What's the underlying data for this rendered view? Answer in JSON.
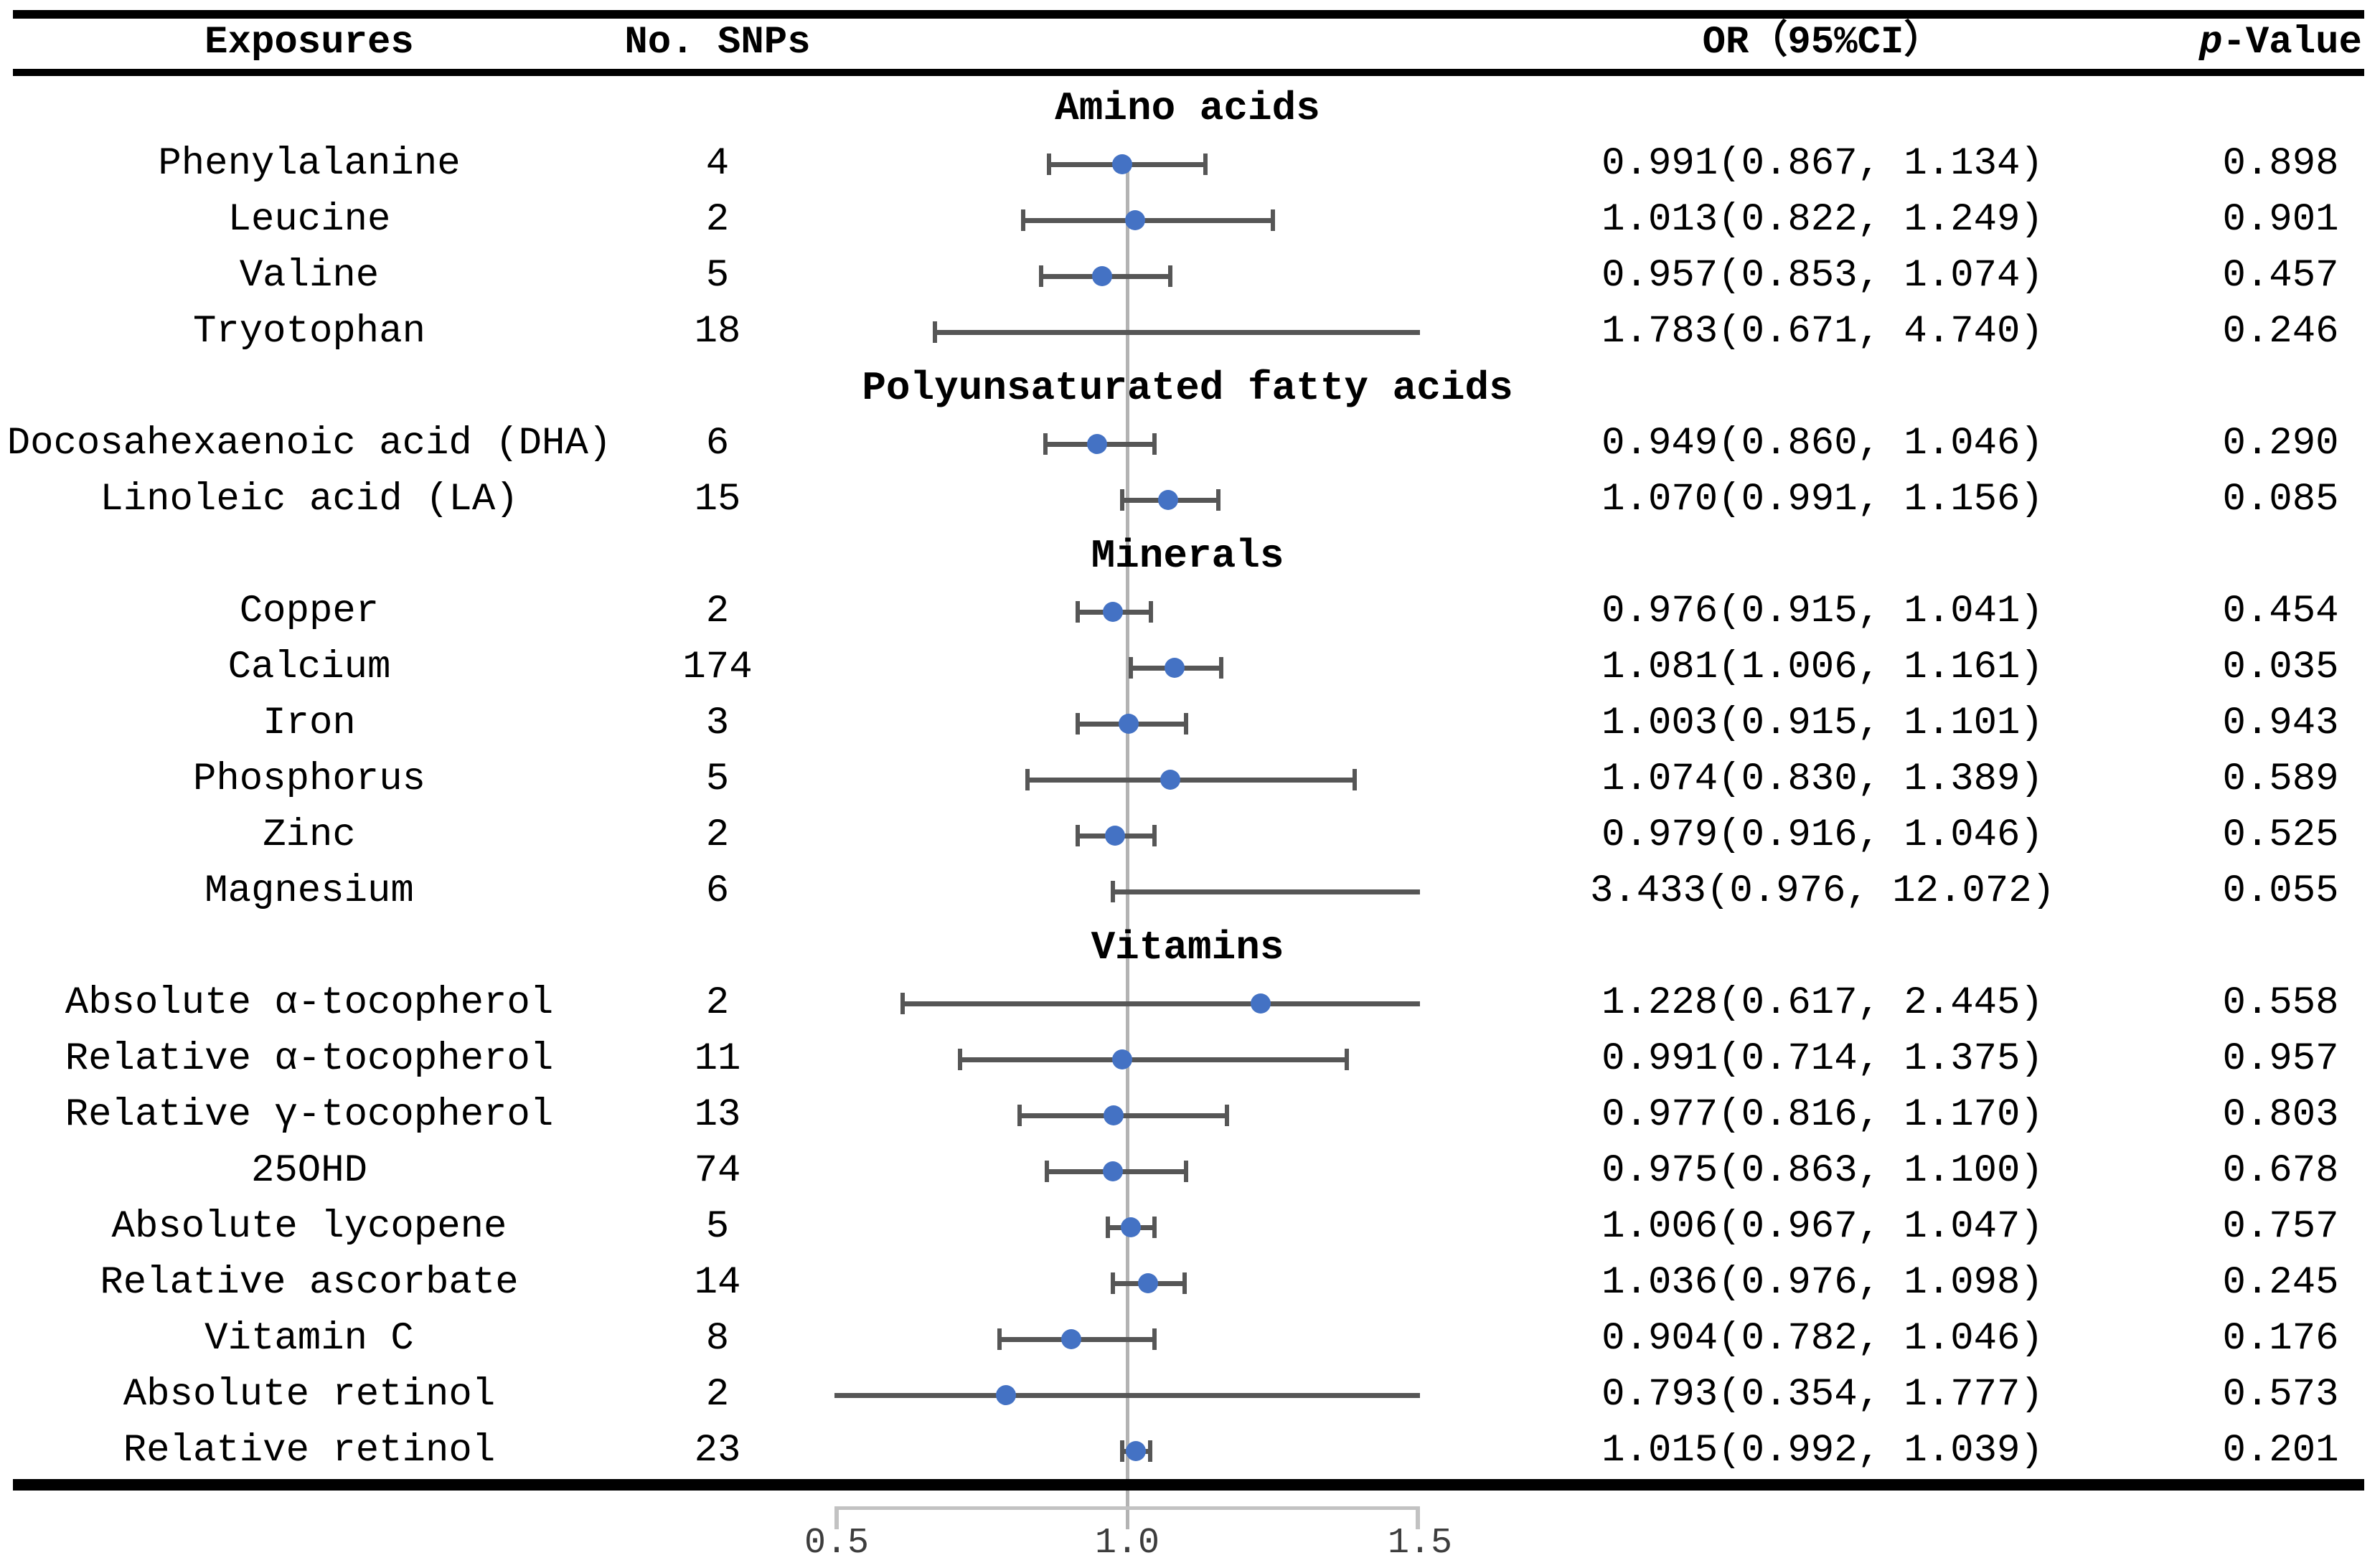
{
  "table": {
    "headers": {
      "exposures": "Exposures",
      "snps": "No. SNPs",
      "or_ci": "OR（95%CI）",
      "p_italic": "p",
      "p_rest": "-Value"
    }
  },
  "chart_data": {
    "type": "scatter",
    "subtype": "forest-plot",
    "or_axis": {
      "range": [
        0.5,
        1.5
      ],
      "tick_values": [
        0.5,
        1.0,
        1.5
      ],
      "tick_labels": [
        "0.5",
        "1.0",
        "1.5"
      ],
      "reference_line": 1.0
    },
    "colors": {
      "marker": "#4472c4",
      "ci_line": "#565656",
      "reference_line": "#b3b3b3",
      "axis_line": "#c2c2c2"
    },
    "groups": [
      {
        "section": "Amino acids",
        "items": [
          {
            "exposure": "Phenylalanine",
            "snps": "4",
            "or": 0.991,
            "ci_low": 0.867,
            "ci_high": 1.134,
            "or_ci_text": "0.991(0.867, 1.134)",
            "p": "0.898"
          },
          {
            "exposure": "Leucine",
            "snps": "2",
            "or": 1.013,
            "ci_low": 0.822,
            "ci_high": 1.249,
            "or_ci_text": "1.013(0.822, 1.249)",
            "p": "0.901"
          },
          {
            "exposure": "Valine",
            "snps": "5",
            "or": 0.957,
            "ci_low": 0.853,
            "ci_high": 1.074,
            "or_ci_text": "0.957(0.853, 1.074)",
            "p": "0.457"
          },
          {
            "exposure": "Tryotophan",
            "snps": "18",
            "or": 1.783,
            "ci_low": 0.671,
            "ci_high": 4.74,
            "or_ci_text": "1.783(0.671, 4.740)",
            "p": "0.246"
          }
        ]
      },
      {
        "section": "Polyunsaturated fatty acids",
        "items": [
          {
            "exposure": "Docosahexaenoic acid (DHA)",
            "snps": "6",
            "or": 0.949,
            "ci_low": 0.86,
            "ci_high": 1.046,
            "or_ci_text": "0.949(0.860, 1.046)",
            "p": "0.290"
          },
          {
            "exposure": "Linoleic acid (LA)",
            "snps": "15",
            "or": 1.07,
            "ci_low": 0.991,
            "ci_high": 1.156,
            "or_ci_text": "1.070(0.991, 1.156)",
            "p": "0.085"
          }
        ]
      },
      {
        "section": "Minerals",
        "items": [
          {
            "exposure": "Copper",
            "snps": "2",
            "or": 0.976,
            "ci_low": 0.915,
            "ci_high": 1.041,
            "or_ci_text": "0.976(0.915, 1.041)",
            "p": "0.454"
          },
          {
            "exposure": "Calcium",
            "snps": "174",
            "or": 1.081,
            "ci_low": 1.006,
            "ci_high": 1.161,
            "or_ci_text": "1.081(1.006, 1.161)",
            "p": "0.035"
          },
          {
            "exposure": "Iron",
            "snps": "3",
            "or": 1.003,
            "ci_low": 0.915,
            "ci_high": 1.101,
            "or_ci_text": "1.003(0.915, 1.101)",
            "p": "0.943"
          },
          {
            "exposure": "Phosphorus",
            "snps": "5",
            "or": 1.074,
            "ci_low": 0.83,
            "ci_high": 1.389,
            "or_ci_text": "1.074(0.830, 1.389)",
            "p": "0.589"
          },
          {
            "exposure": "Zinc",
            "snps": "2",
            "or": 0.979,
            "ci_low": 0.916,
            "ci_high": 1.046,
            "or_ci_text": "0.979(0.916, 1.046)",
            "p": "0.525"
          },
          {
            "exposure": "Magnesium",
            "snps": "6",
            "or": 3.433,
            "ci_low": 0.976,
            "ci_high": 12.072,
            "or_ci_text": "3.433(0.976, 12.072)",
            "p": "0.055"
          }
        ]
      },
      {
        "section": "Vitamins",
        "items": [
          {
            "exposure": "Absolute α-tocopherol",
            "snps": "2",
            "or": 1.228,
            "ci_low": 0.617,
            "ci_high": 2.445,
            "or_ci_text": "1.228(0.617, 2.445)",
            "p": "0.558"
          },
          {
            "exposure": "Relative α-tocopherol",
            "snps": "11",
            "or": 0.991,
            "ci_low": 0.714,
            "ci_high": 1.375,
            "or_ci_text": "0.991(0.714, 1.375)",
            "p": "0.957"
          },
          {
            "exposure": "Relative γ-tocopherol",
            "snps": "13",
            "or": 0.977,
            "ci_low": 0.816,
            "ci_high": 1.17,
            "or_ci_text": "0.977(0.816, 1.170)",
            "p": "0.803"
          },
          {
            "exposure": "25OHD",
            "snps": "74",
            "or": 0.975,
            "ci_low": 0.863,
            "ci_high": 1.1,
            "or_ci_text": "0.975(0.863, 1.100)",
            "p": "0.678"
          },
          {
            "exposure": "Absolute lycopene",
            "snps": "5",
            "or": 1.006,
            "ci_low": 0.967,
            "ci_high": 1.047,
            "or_ci_text": "1.006(0.967, 1.047)",
            "p": "0.757"
          },
          {
            "exposure": "Relative ascorbate",
            "snps": "14",
            "or": 1.036,
            "ci_low": 0.976,
            "ci_high": 1.098,
            "or_ci_text": "1.036(0.976, 1.098)",
            "p": "0.245"
          },
          {
            "exposure": "Vitamin C",
            "snps": "8",
            "or": 0.904,
            "ci_low": 0.782,
            "ci_high": 1.046,
            "or_ci_text": "0.904(0.782, 1.046)",
            "p": "0.176"
          },
          {
            "exposure": "Absolute retinol",
            "snps": "2",
            "or": 0.793,
            "ci_low": 0.354,
            "ci_high": 1.777,
            "or_ci_text": "0.793(0.354, 1.777)",
            "p": "0.573"
          },
          {
            "exposure": "Relative retinol",
            "snps": "23",
            "or": 1.015,
            "ci_low": 0.992,
            "ci_high": 1.039,
            "or_ci_text": "1.015(0.992, 1.039)",
            "p": "0.201"
          }
        ]
      }
    ]
  }
}
